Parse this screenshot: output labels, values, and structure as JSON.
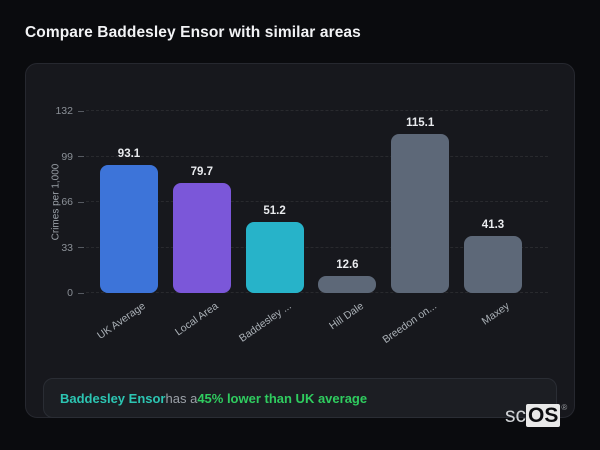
{
  "page": {
    "title": "Compare Baddesley Ensor with similar areas"
  },
  "chart_data": {
    "type": "bar",
    "title": "Compare Baddesley Ensor with similar areas",
    "categories": [
      "UK Average",
      "Local Area",
      "Baddesley ...",
      "Hill Dale",
      "Breedon on...",
      "Maxey"
    ],
    "values": [
      93.1,
      79.7,
      51.2,
      12.6,
      115.1,
      41.3
    ],
    "bar_colors": [
      "#3d74d9",
      "#7b57d9",
      "#27b3c9",
      "#5d6878",
      "#5d6878",
      "#5d6878"
    ],
    "xlabel": "",
    "ylabel": "Crimes per 1,000",
    "yticks": [
      0,
      33,
      66,
      99,
      132
    ],
    "ylim": [
      0,
      132
    ],
    "grid": "dashed-horizontal",
    "legend": "none"
  },
  "note": {
    "area_name": "Baddesley Ensor",
    "connector": " has a ",
    "highlight": "45% lower than UK average"
  },
  "logo": {
    "prefix": "sc",
    "suffix": "OS",
    "registered": "®"
  },
  "colors": {
    "page_background": "#0a0b0e",
    "card_background": "#17181d",
    "card_border": "#26282f",
    "note_background": "#1c1e23",
    "note_area_color": "#2cc5b2",
    "note_highlight_color": "#2fcc5f",
    "bar_blue": "#3d74d9",
    "bar_purple": "#7b57d9",
    "bar_teal": "#27b3c9",
    "bar_gray": "#5d6878"
  }
}
